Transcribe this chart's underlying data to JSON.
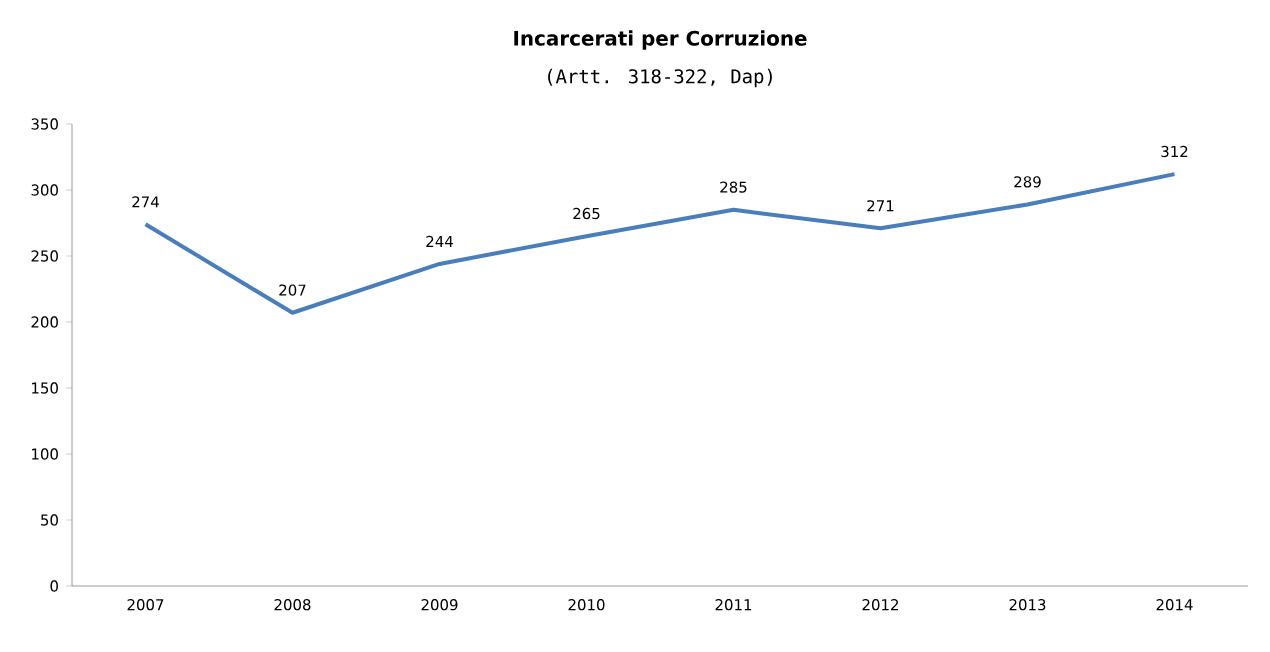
{
  "chart_data": {
    "type": "line",
    "title": "Incarcerati per Corruzione",
    "subtitle": "(Artt. 318-322, Dap)",
    "categories": [
      "2007",
      "2008",
      "2009",
      "2010",
      "2011",
      "2012",
      "2013",
      "2014"
    ],
    "values": [
      274,
      207,
      244,
      265,
      285,
      271,
      289,
      312
    ],
    "color": "#4a7ebb",
    "ylim": [
      0,
      350
    ],
    "yticks": [
      0,
      50,
      100,
      150,
      200,
      250,
      300,
      350
    ],
    "data_labels": true,
    "grid": false,
    "marker": "none",
    "line_style": "solid"
  }
}
